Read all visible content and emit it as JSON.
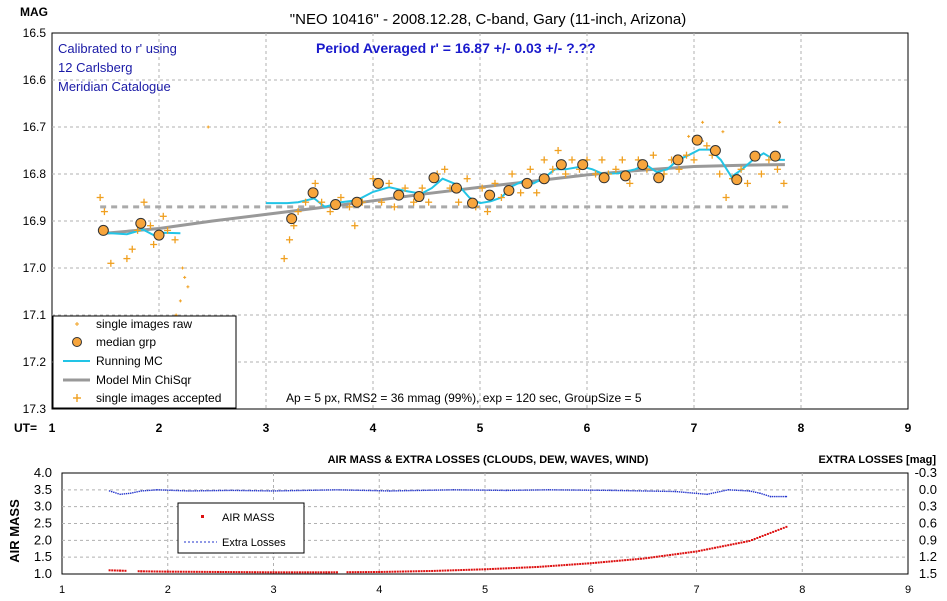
{
  "chart_data": [
    {
      "type": "scatter",
      "title": "\"NEO 10416\" - 2008.12.28, C-band, Gary (11-inch, Arizona)",
      "ylabel": "MAG",
      "xlabel": "UT=",
      "xlim": [
        1,
        9
      ],
      "ylim": [
        16.5,
        17.3
      ],
      "y_inverted": true,
      "x_ticks": [
        "1",
        "2",
        "3",
        "4",
        "5",
        "6",
        "7",
        "8",
        "9"
      ],
      "y_ticks": [
        "16.5",
        "16.6",
        "16.7",
        "16.8",
        "16.9",
        "17.0",
        "17.1",
        "17.2",
        "17.3"
      ],
      "grid": true,
      "annotation_calibration": [
        "Calibrated to r' using",
        "12 Carlsberg",
        "Meridian Catalogue"
      ],
      "annotation_period": "Period Averaged r' = 16.87 +/- 0.03 +/- ?.??",
      "annotation_params": "Ap = 5 px, RMS2 = 36 mmag (99%), exp = 120 sec, GroupSize = 5",
      "legend": [
        "single images raw",
        "median grp",
        "Running MC",
        "Model Min ChiSqr",
        "single images accepted"
      ],
      "legend_position": "bottom-left",
      "period_average": 16.87,
      "series": [
        {
          "name": "median grp",
          "points": [
            [
              1.48,
              16.92
            ],
            [
              1.83,
              16.905
            ],
            [
              2.0,
              16.93
            ],
            [
              3.24,
              16.895
            ],
            [
              3.44,
              16.84
            ],
            [
              3.65,
              16.865
            ],
            [
              3.85,
              16.86
            ],
            [
              4.05,
              16.82
            ],
            [
              4.24,
              16.845
            ],
            [
              4.43,
              16.848
            ],
            [
              4.57,
              16.808
            ],
            [
              4.78,
              16.83
            ],
            [
              4.93,
              16.862
            ],
            [
              5.09,
              16.845
            ],
            [
              5.27,
              16.835
            ],
            [
              5.44,
              16.82
            ],
            [
              5.6,
              16.81
            ],
            [
              5.76,
              16.78
            ],
            [
              5.96,
              16.78
            ],
            [
              6.16,
              16.808
            ],
            [
              6.36,
              16.804
            ],
            [
              6.52,
              16.78
            ],
            [
              6.67,
              16.808
            ],
            [
              6.85,
              16.77
            ],
            [
              7.03,
              16.728
            ],
            [
              7.2,
              16.75
            ],
            [
              7.4,
              16.812
            ],
            [
              7.57,
              16.762
            ],
            [
              7.76,
              16.762
            ]
          ]
        },
        {
          "name": "Model Min ChiSqr",
          "points": [
            [
              1.5,
              16.926
            ],
            [
              2.0,
              16.916
            ],
            [
              2.5,
              16.9
            ],
            [
              3.0,
              16.886
            ],
            [
              3.5,
              16.872
            ],
            [
              4.0,
              16.857
            ],
            [
              4.5,
              16.842
            ],
            [
              5.0,
              16.828
            ],
            [
              5.5,
              16.815
            ],
            [
              6.0,
              16.802
            ],
            [
              6.5,
              16.792
            ],
            [
              7.0,
              16.784
            ],
            [
              7.5,
              16.781
            ],
            [
              7.85,
              16.78
            ]
          ]
        },
        {
          "name": "Running MC",
          "points": [
            [
              1.48,
              16.925
            ],
            [
              1.7,
              16.928
            ],
            [
              1.85,
              16.918
            ],
            [
              1.95,
              16.93
            ],
            [
              2.05,
              16.925
            ],
            [
              2.2,
              16.926
            ],
            [
              3.0,
              16.862
            ],
            [
              3.2,
              16.862
            ],
            [
              3.3,
              16.86
            ],
            [
              3.45,
              16.852
            ],
            [
              3.55,
              16.87
            ],
            [
              3.7,
              16.86
            ],
            [
              3.85,
              16.856
            ],
            [
              4.0,
              16.838
            ],
            [
              4.15,
              16.828
            ],
            [
              4.3,
              16.836
            ],
            [
              4.45,
              16.842
            ],
            [
              4.55,
              16.83
            ],
            [
              4.65,
              16.81
            ],
            [
              4.8,
              16.824
            ],
            [
              4.9,
              16.85
            ],
            [
              5.0,
              16.862
            ],
            [
              5.1,
              16.858
            ],
            [
              5.2,
              16.85
            ],
            [
              5.3,
              16.826
            ],
            [
              5.4,
              16.815
            ],
            [
              5.5,
              16.82
            ],
            [
              5.6,
              16.808
            ],
            [
              5.7,
              16.79
            ],
            [
              5.8,
              16.79
            ],
            [
              5.95,
              16.784
            ],
            [
              6.05,
              16.79
            ],
            [
              6.15,
              16.8
            ],
            [
              6.3,
              16.798
            ],
            [
              6.45,
              16.79
            ],
            [
              6.55,
              16.78
            ],
            [
              6.65,
              16.796
            ],
            [
              6.75,
              16.79
            ],
            [
              6.85,
              16.77
            ],
            [
              6.95,
              16.76
            ],
            [
              7.05,
              16.748
            ],
            [
              7.15,
              16.748
            ],
            [
              7.25,
              16.77
            ],
            [
              7.35,
              16.806
            ],
            [
              7.45,
              16.79
            ],
            [
              7.55,
              16.77
            ],
            [
              7.65,
              16.756
            ],
            [
              7.75,
              16.77
            ],
            [
              7.85,
              16.77
            ]
          ]
        },
        {
          "name": "single images accepted",
          "points": [
            [
              1.45,
              16.85
            ],
            [
              1.49,
              16.88
            ],
            [
              1.55,
              16.99
            ],
            [
              1.7,
              16.98
            ],
            [
              1.75,
              16.96
            ],
            [
              1.8,
              16.92
            ],
            [
              1.86,
              16.86
            ],
            [
              1.92,
              16.91
            ],
            [
              1.95,
              16.95
            ],
            [
              2.04,
              16.89
            ],
            [
              2.08,
              16.92
            ],
            [
              2.15,
              16.94
            ],
            [
              3.17,
              16.98
            ],
            [
              3.22,
              16.94
            ],
            [
              3.26,
              16.91
            ],
            [
              3.3,
              16.88
            ],
            [
              3.37,
              16.86
            ],
            [
              3.46,
              16.82
            ],
            [
              3.52,
              16.86
            ],
            [
              3.6,
              16.88
            ],
            [
              3.7,
              16.85
            ],
            [
              3.78,
              16.87
            ],
            [
              3.83,
              16.91
            ],
            [
              3.9,
              16.86
            ],
            [
              4.0,
              16.81
            ],
            [
              4.08,
              16.86
            ],
            [
              4.15,
              16.82
            ],
            [
              4.2,
              16.87
            ],
            [
              4.3,
              16.83
            ],
            [
              4.38,
              16.86
            ],
            [
              4.46,
              16.83
            ],
            [
              4.52,
              16.86
            ],
            [
              4.6,
              16.8
            ],
            [
              4.67,
              16.79
            ],
            [
              4.72,
              16.83
            ],
            [
              4.8,
              16.86
            ],
            [
              4.88,
              16.81
            ],
            [
              4.96,
              16.87
            ],
            [
              5.02,
              16.83
            ],
            [
              5.07,
              16.88
            ],
            [
              5.14,
              16.82
            ],
            [
              5.2,
              16.85
            ],
            [
              5.3,
              16.8
            ],
            [
              5.38,
              16.84
            ],
            [
              5.47,
              16.79
            ],
            [
              5.53,
              16.84
            ],
            [
              5.6,
              16.77
            ],
            [
              5.68,
              16.79
            ],
            [
              5.73,
              16.75
            ],
            [
              5.8,
              16.8
            ],
            [
              5.86,
              16.77
            ],
            [
              5.93,
              16.79
            ],
            [
              6.0,
              16.77
            ],
            [
              6.08,
              16.8
            ],
            [
              6.14,
              16.77
            ],
            [
              6.2,
              16.8
            ],
            [
              6.27,
              16.79
            ],
            [
              6.33,
              16.77
            ],
            [
              6.4,
              16.82
            ],
            [
              6.48,
              16.77
            ],
            [
              6.56,
              16.79
            ],
            [
              6.62,
              16.76
            ],
            [
              6.72,
              16.8
            ],
            [
              6.79,
              16.77
            ],
            [
              6.86,
              16.79
            ],
            [
              6.93,
              16.76
            ],
            [
              7.0,
              16.77
            ],
            [
              7.06,
              16.73
            ],
            [
              7.12,
              16.74
            ],
            [
              7.17,
              16.76
            ],
            [
              7.24,
              16.8
            ],
            [
              7.3,
              16.85
            ],
            [
              7.36,
              16.81
            ],
            [
              7.44,
              16.79
            ],
            [
              7.5,
              16.82
            ],
            [
              7.58,
              16.76
            ],
            [
              7.63,
              16.8
            ],
            [
              7.7,
              16.77
            ],
            [
              7.78,
              16.79
            ],
            [
              7.84,
              16.82
            ]
          ]
        },
        {
          "name": "single images raw",
          "points": [
            [
              2.22,
              17.0
            ],
            [
              2.24,
              17.02
            ],
            [
              2.27,
              17.04
            ],
            [
              2.2,
              17.07
            ],
            [
              2.16,
              17.1
            ],
            [
              2.46,
              16.7
            ],
            [
              7.08,
              16.69
            ],
            [
              7.8,
              16.69
            ],
            [
              7.27,
              16.71
            ],
            [
              6.95,
              16.72
            ]
          ]
        }
      ]
    },
    {
      "type": "scatter",
      "title": "AIR MASS & EXTRA LOSSES (CLOUDS, DEW, WAVES, WIND)",
      "ylabel": "AIR MASS",
      "y2label": "EXTRA LOSSES [mag]",
      "xlim": [
        1,
        9
      ],
      "ylim": [
        1.0,
        4.0
      ],
      "y2lim": [
        -0.3,
        1.5
      ],
      "x_ticks": [
        "1",
        "2",
        "3",
        "4",
        "5",
        "6",
        "7",
        "8",
        "9"
      ],
      "y_ticks": [
        "4.0",
        "3.5",
        "3.0",
        "2.5",
        "2.0",
        "1.5",
        "1.0"
      ],
      "y2_ticks": [
        "-0.3",
        "0.0",
        "0.3",
        "0.6",
        "0.9",
        "1.2",
        "1.5"
      ],
      "legend": [
        "AIR MASS",
        "Extra Losses"
      ],
      "legend_position": "center-left",
      "series": [
        {
          "name": "AIR MASS",
          "points": [
            [
              1.45,
              1.11
            ],
            [
              1.55,
              1.1
            ],
            [
              1.75,
              1.08
            ],
            [
              2.0,
              1.07
            ],
            [
              2.5,
              1.06
            ],
            [
              3.0,
              1.05
            ],
            [
              3.5,
              1.05
            ],
            [
              4.0,
              1.06
            ],
            [
              4.5,
              1.09
            ],
            [
              5.0,
              1.14
            ],
            [
              5.5,
              1.21
            ],
            [
              6.0,
              1.32
            ],
            [
              6.5,
              1.46
            ],
            [
              7.0,
              1.67
            ],
            [
              7.5,
              1.98
            ],
            [
              7.85,
              2.4
            ]
          ]
        },
        {
          "name": "Extra Losses",
          "points": [
            [
              1.45,
              0.02
            ],
            [
              1.55,
              0.08
            ],
            [
              1.65,
              0.06
            ],
            [
              1.75,
              0.02
            ],
            [
              1.9,
              0.0
            ],
            [
              2.2,
              0.02
            ],
            [
              2.6,
              0.01
            ],
            [
              3.0,
              0.02
            ],
            [
              3.6,
              0.0
            ],
            [
              4.1,
              0.02
            ],
            [
              4.7,
              0.0
            ],
            [
              5.2,
              0.01
            ],
            [
              5.6,
              0.0
            ],
            [
              6.2,
              0.01
            ],
            [
              6.8,
              0.03
            ],
            [
              7.1,
              0.08
            ],
            [
              7.3,
              0.0
            ],
            [
              7.5,
              0.02
            ],
            [
              7.6,
              0.06
            ],
            [
              7.7,
              0.12
            ],
            [
              7.85,
              0.12
            ]
          ]
        }
      ]
    }
  ]
}
